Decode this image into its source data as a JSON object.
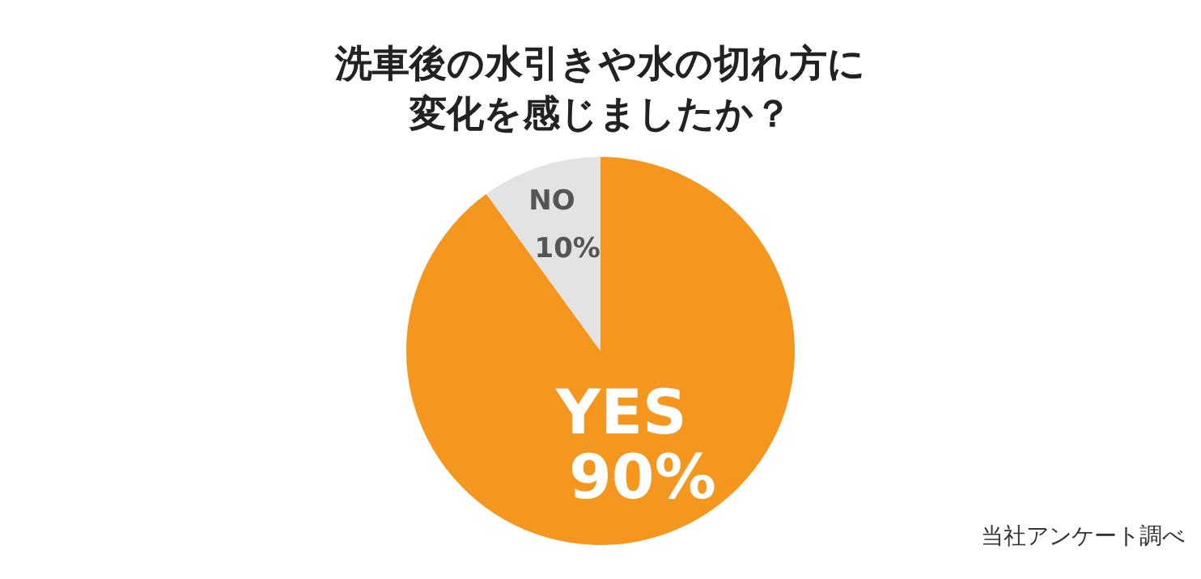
{
  "chart_data": {
    "type": "pie",
    "title": "洗車後の水引きや水の切れ方に変化を感じましたか？",
    "categories": [
      "YES",
      "NO"
    ],
    "values": [
      90,
      10
    ],
    "value_labels": [
      "90%",
      "10%"
    ],
    "colors": [
      "#f5961f",
      "#e3e3e3"
    ],
    "annotations": [
      "当社アンケート調べ"
    ]
  }
}
